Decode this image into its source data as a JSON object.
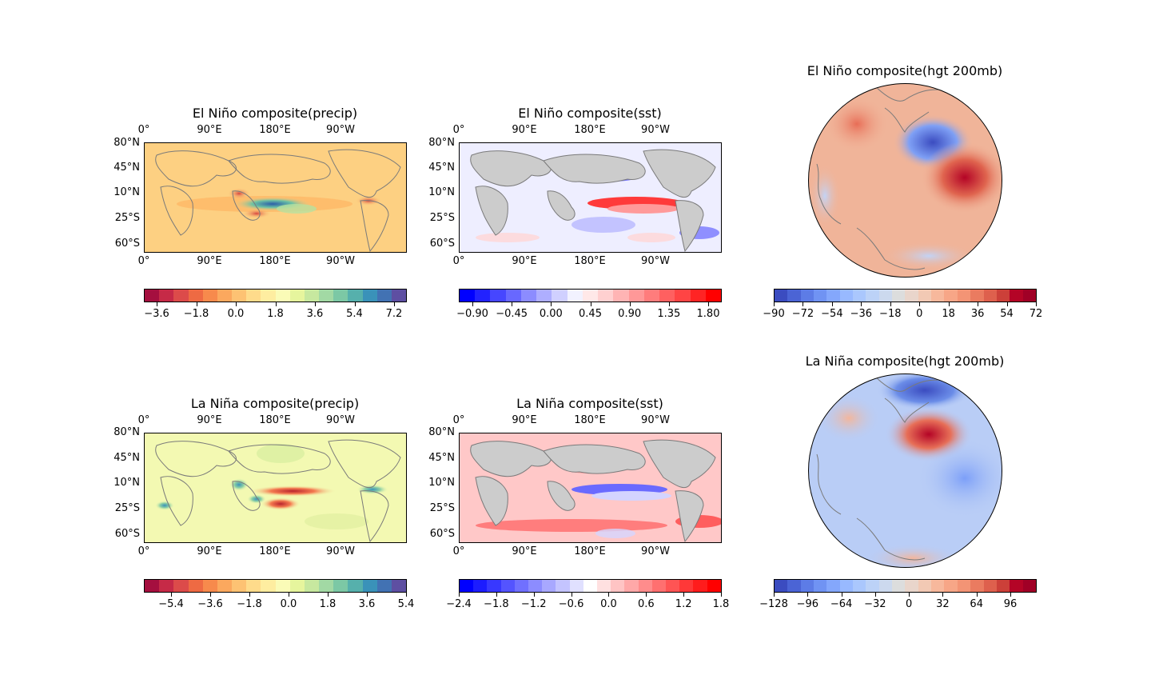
{
  "figure": {
    "panels": [
      {
        "id": "p1",
        "title": "El Niño composite(precip)",
        "type": "map-precip-elnino"
      },
      {
        "id": "p2",
        "title": "El Niño composite(sst)",
        "type": "map-sst-elnino"
      },
      {
        "id": "p3",
        "title": "El Niño composite(hgt 200mb)",
        "type": "globe-elnino"
      },
      {
        "id": "p4",
        "title": "La Niña composite(precip)",
        "type": "map-precip-lanina"
      },
      {
        "id": "p5",
        "title": "La Niña composite(sst)",
        "type": "map-sst-lanina"
      },
      {
        "id": "p6",
        "title": "La Niña composite(hgt 200mb)",
        "type": "globe-lanina"
      }
    ],
    "lon_labels": [
      "0°",
      "90°E",
      "180°E",
      "90°W"
    ],
    "lat_labels": [
      "80°N",
      "45°N",
      "10°N",
      "25°S",
      "60°S"
    ],
    "colorbars": {
      "p1": {
        "ticks": [
          "−3.6",
          "−1.8",
          "0.0",
          "1.8",
          "3.6",
          "5.4",
          "7.2"
        ],
        "colors": [
          "#a50f3f",
          "#c62a47",
          "#dc4b4a",
          "#ee6a43",
          "#f78a4c",
          "#fba85e",
          "#fdc273",
          "#fedb8b",
          "#feeda0",
          "#fafbb7",
          "#e6f59d",
          "#c7e89f",
          "#a2d9a4",
          "#7cc8a5",
          "#56b0ac",
          "#3a92b9",
          "#4272b3",
          "#5e4fa2"
        ]
      },
      "p2": {
        "ticks": [
          "−0.90",
          "−0.45",
          "0.00",
          "0.45",
          "0.90",
          "1.35",
          "1.80"
        ],
        "colors": [
          "#0000ff",
          "#2222ff",
          "#4646ff",
          "#6868ff",
          "#8c8cff",
          "#aeaeff",
          "#d0d0ff",
          "#f2f2ff",
          "#ffe8e8",
          "#ffd0d0",
          "#ffb4b4",
          "#ff9898",
          "#ff7c7c",
          "#ff6060",
          "#ff4444",
          "#ff2424",
          "#ff0000"
        ]
      },
      "p3": {
        "ticks": [
          "−90",
          "−72",
          "−54",
          "−36",
          "−18",
          "0",
          "18",
          "36",
          "54",
          "72"
        ],
        "colors": [
          "#3b4cc0",
          "#4b64d5",
          "#5d7ce6",
          "#7093f3",
          "#84a7fc",
          "#98b9ff",
          "#aac7fd",
          "#bcd2f7",
          "#ccd9ee",
          "#dcdddd",
          "#e9d5cb",
          "#f2c9b4",
          "#f7b89c",
          "#f7a687",
          "#f39475",
          "#ea7b60",
          "#de604d",
          "#cc4039",
          "#b40426",
          "#a00026"
        ]
      },
      "p4": {
        "ticks": [
          "−5.4",
          "−3.6",
          "−1.8",
          "0.0",
          "1.8",
          "3.6",
          "5.4"
        ],
        "colors": [
          "#a50f3f",
          "#c62a47",
          "#dc4b4a",
          "#ee6a43",
          "#f78a4c",
          "#fba85e",
          "#fdc273",
          "#fedb8b",
          "#feeda0",
          "#fafbb7",
          "#e6f59d",
          "#c7e89f",
          "#a2d9a4",
          "#7cc8a5",
          "#56b0ac",
          "#3a92b9",
          "#4272b3",
          "#5e4fa2"
        ]
      },
      "p5": {
        "ticks": [
          "−2.4",
          "−1.8",
          "−1.2",
          "−0.6",
          "0.0",
          "0.6",
          "1.2",
          "1.8"
        ],
        "colors": [
          "#0000ff",
          "#1c1cff",
          "#3838ff",
          "#5454ff",
          "#7070ff",
          "#8c8cff",
          "#a8a8ff",
          "#c4c4ff",
          "#e0e0ff",
          "#ffffff",
          "#ffe0e0",
          "#ffc4c4",
          "#ffa8a8",
          "#ff8c8c",
          "#ff7070",
          "#ff5454",
          "#ff3838",
          "#ff1c1c",
          "#ff0000"
        ]
      },
      "p6": {
        "ticks": [
          "−128",
          "−96",
          "−64",
          "−32",
          "0",
          "32",
          "64",
          "96"
        ],
        "colors": [
          "#3b4cc0",
          "#4b64d5",
          "#5d7ce6",
          "#7093f3",
          "#84a7fc",
          "#98b9ff",
          "#aac7fd",
          "#bcd2f7",
          "#ccd9ee",
          "#dcdddd",
          "#e9d5cb",
          "#f2c9b4",
          "#f7b89c",
          "#f7a687",
          "#f39475",
          "#ea7b60",
          "#de604d",
          "#cc4039",
          "#b40426",
          "#a00026"
        ]
      }
    }
  }
}
